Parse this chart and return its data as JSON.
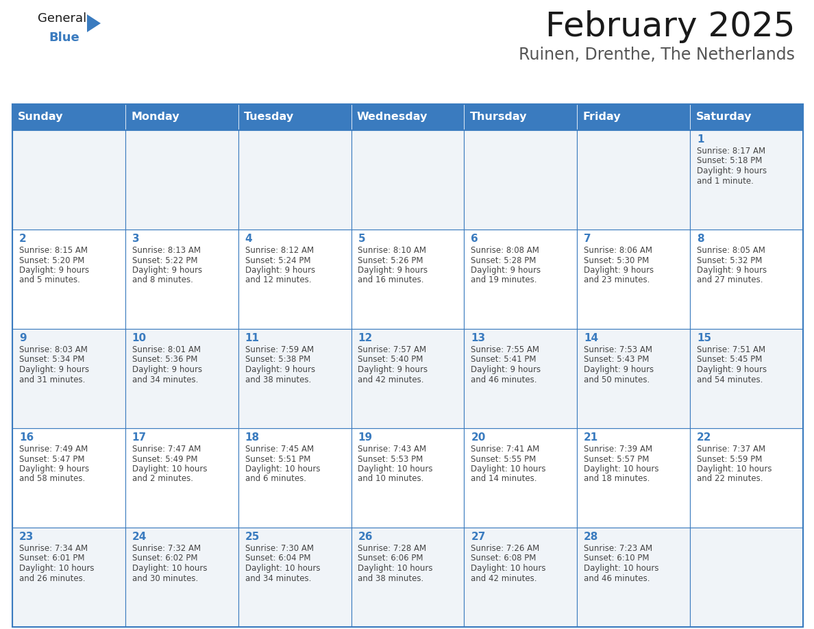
{
  "title": "February 2025",
  "subtitle": "Ruinen, Drenthe, The Netherlands",
  "header_color": "#3a7bbf",
  "header_text_color": "#ffffff",
  "day_names": [
    "Sunday",
    "Monday",
    "Tuesday",
    "Wednesday",
    "Thursday",
    "Friday",
    "Saturday"
  ],
  "background_color": "#ffffff",
  "cell_bg_even": "#f0f4f8",
  "cell_bg_odd": "#ffffff",
  "border_color": "#3a7bbf",
  "day_number_color": "#3a7bbf",
  "text_color": "#444444",
  "days": [
    {
      "day": 1,
      "col": 6,
      "row": 0,
      "sunrise": "8:17 AM",
      "sunset": "5:18 PM",
      "daylight": "9 hours and 1 minute."
    },
    {
      "day": 2,
      "col": 0,
      "row": 1,
      "sunrise": "8:15 AM",
      "sunset": "5:20 PM",
      "daylight": "9 hours and 5 minutes."
    },
    {
      "day": 3,
      "col": 1,
      "row": 1,
      "sunrise": "8:13 AM",
      "sunset": "5:22 PM",
      "daylight": "9 hours and 8 minutes."
    },
    {
      "day": 4,
      "col": 2,
      "row": 1,
      "sunrise": "8:12 AM",
      "sunset": "5:24 PM",
      "daylight": "9 hours and 12 minutes."
    },
    {
      "day": 5,
      "col": 3,
      "row": 1,
      "sunrise": "8:10 AM",
      "sunset": "5:26 PM",
      "daylight": "9 hours and 16 minutes."
    },
    {
      "day": 6,
      "col": 4,
      "row": 1,
      "sunrise": "8:08 AM",
      "sunset": "5:28 PM",
      "daylight": "9 hours and 19 minutes."
    },
    {
      "day": 7,
      "col": 5,
      "row": 1,
      "sunrise": "8:06 AM",
      "sunset": "5:30 PM",
      "daylight": "9 hours and 23 minutes."
    },
    {
      "day": 8,
      "col": 6,
      "row": 1,
      "sunrise": "8:05 AM",
      "sunset": "5:32 PM",
      "daylight": "9 hours and 27 minutes."
    },
    {
      "day": 9,
      "col": 0,
      "row": 2,
      "sunrise": "8:03 AM",
      "sunset": "5:34 PM",
      "daylight": "9 hours and 31 minutes."
    },
    {
      "day": 10,
      "col": 1,
      "row": 2,
      "sunrise": "8:01 AM",
      "sunset": "5:36 PM",
      "daylight": "9 hours and 34 minutes."
    },
    {
      "day": 11,
      "col": 2,
      "row": 2,
      "sunrise": "7:59 AM",
      "sunset": "5:38 PM",
      "daylight": "9 hours and 38 minutes."
    },
    {
      "day": 12,
      "col": 3,
      "row": 2,
      "sunrise": "7:57 AM",
      "sunset": "5:40 PM",
      "daylight": "9 hours and 42 minutes."
    },
    {
      "day": 13,
      "col": 4,
      "row": 2,
      "sunrise": "7:55 AM",
      "sunset": "5:41 PM",
      "daylight": "9 hours and 46 minutes."
    },
    {
      "day": 14,
      "col": 5,
      "row": 2,
      "sunrise": "7:53 AM",
      "sunset": "5:43 PM",
      "daylight": "9 hours and 50 minutes."
    },
    {
      "day": 15,
      "col": 6,
      "row": 2,
      "sunrise": "7:51 AM",
      "sunset": "5:45 PM",
      "daylight": "9 hours and 54 minutes."
    },
    {
      "day": 16,
      "col": 0,
      "row": 3,
      "sunrise": "7:49 AM",
      "sunset": "5:47 PM",
      "daylight": "9 hours and 58 minutes."
    },
    {
      "day": 17,
      "col": 1,
      "row": 3,
      "sunrise": "7:47 AM",
      "sunset": "5:49 PM",
      "daylight": "10 hours and 2 minutes."
    },
    {
      "day": 18,
      "col": 2,
      "row": 3,
      "sunrise": "7:45 AM",
      "sunset": "5:51 PM",
      "daylight": "10 hours and 6 minutes."
    },
    {
      "day": 19,
      "col": 3,
      "row": 3,
      "sunrise": "7:43 AM",
      "sunset": "5:53 PM",
      "daylight": "10 hours and 10 minutes."
    },
    {
      "day": 20,
      "col": 4,
      "row": 3,
      "sunrise": "7:41 AM",
      "sunset": "5:55 PM",
      "daylight": "10 hours and 14 minutes."
    },
    {
      "day": 21,
      "col": 5,
      "row": 3,
      "sunrise": "7:39 AM",
      "sunset": "5:57 PM",
      "daylight": "10 hours and 18 minutes."
    },
    {
      "day": 22,
      "col": 6,
      "row": 3,
      "sunrise": "7:37 AM",
      "sunset": "5:59 PM",
      "daylight": "10 hours and 22 minutes."
    },
    {
      "day": 23,
      "col": 0,
      "row": 4,
      "sunrise": "7:34 AM",
      "sunset": "6:01 PM",
      "daylight": "10 hours and 26 minutes."
    },
    {
      "day": 24,
      "col": 1,
      "row": 4,
      "sunrise": "7:32 AM",
      "sunset": "6:02 PM",
      "daylight": "10 hours and 30 minutes."
    },
    {
      "day": 25,
      "col": 2,
      "row": 4,
      "sunrise": "7:30 AM",
      "sunset": "6:04 PM",
      "daylight": "10 hours and 34 minutes."
    },
    {
      "day": 26,
      "col": 3,
      "row": 4,
      "sunrise": "7:28 AM",
      "sunset": "6:06 PM",
      "daylight": "10 hours and 38 minutes."
    },
    {
      "day": 27,
      "col": 4,
      "row": 4,
      "sunrise": "7:26 AM",
      "sunset": "6:08 PM",
      "daylight": "10 hours and 42 minutes."
    },
    {
      "day": 28,
      "col": 5,
      "row": 4,
      "sunrise": "7:23 AM",
      "sunset": "6:10 PM",
      "daylight": "10 hours and 46 minutes."
    }
  ],
  "title_fontsize": 36,
  "subtitle_fontsize": 17,
  "header_fontsize": 11.5,
  "day_num_fontsize": 11,
  "cell_text_fontsize": 8.5
}
